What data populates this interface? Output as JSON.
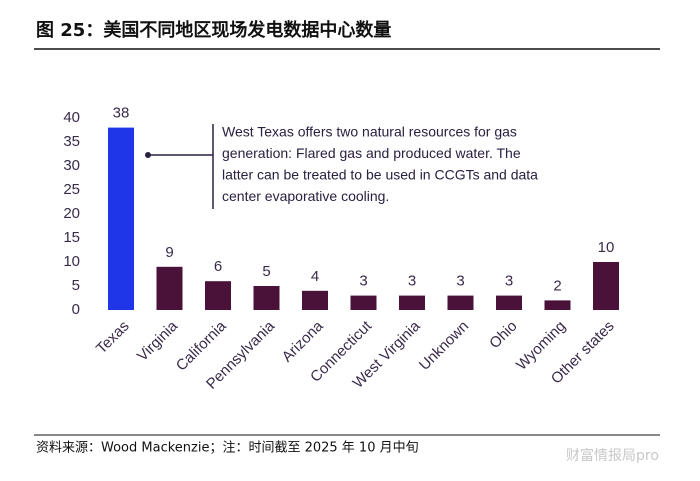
{
  "chart_data": {
    "type": "bar",
    "title": "图 25：美国不同地区现场发电数据中心数量",
    "categories": [
      "Texas",
      "Virginia",
      "California",
      "Pennsylvania",
      "Arizona",
      "Connecticut",
      "West Virginia",
      "Unknown",
      "Ohio",
      "Wyoming",
      "Other states"
    ],
    "values": [
      38,
      9,
      6,
      5,
      4,
      3,
      3,
      3,
      3,
      2,
      10
    ],
    "colors": [
      "#1e36e8",
      "#4a1238",
      "#4a1238",
      "#4a1238",
      "#4a1238",
      "#4a1238",
      "#4a1238",
      "#4a1238",
      "#4a1238",
      "#4a1238",
      "#4a1238"
    ],
    "ylim": [
      0,
      40
    ],
    "yticks": [
      0,
      5,
      10,
      15,
      20,
      25,
      30,
      35,
      40
    ],
    "grid": false,
    "annotation": [
      "West Texas offers two natural resources for gas",
      "generation: Flared gas and produced water. The",
      "latter can be treated to be used in CCGTs and data",
      "center evaporative cooling."
    ],
    "source": "资料来源：Wood Mackenzie；注：时间截至 2025 年 10 月中旬",
    "watermark": "财富情报局pro"
  }
}
